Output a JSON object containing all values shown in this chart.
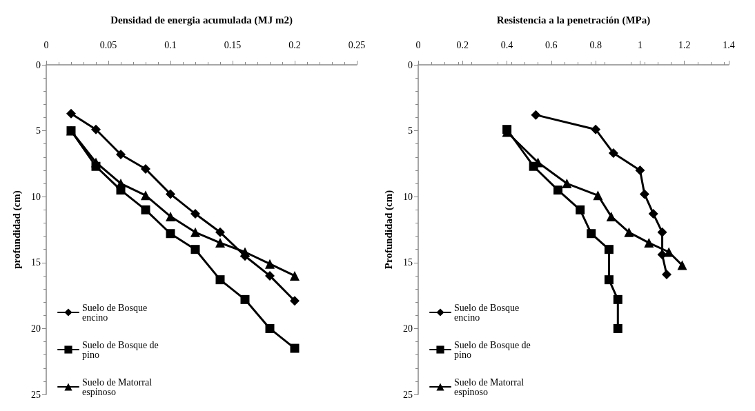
{
  "chart_data": [
    {
      "type": "line",
      "xlabel": "Densidad de energia acumulada (MJ m2)",
      "ylabel": "profundidad (cm)",
      "xlim": [
        0,
        0.25
      ],
      "xticks": [
        0,
        0.05,
        0.1,
        0.15,
        0.2,
        0.25
      ],
      "ylim": [
        25,
        0
      ],
      "yticks": [
        0,
        5,
        10,
        15,
        20,
        25
      ],
      "grid": false,
      "legend": "bottom left",
      "line_style": "solid",
      "series": [
        {
          "name": "Suelo de Bosque encino",
          "color": "#000000",
          "marker": "diamond",
          "x": [
            0.02,
            0.04,
            0.06,
            0.08,
            0.1,
            0.12,
            0.14,
            0.16,
            0.18,
            0.2
          ],
          "values": [
            3.7,
            4.9,
            6.8,
            7.9,
            9.8,
            11.3,
            12.7,
            14.5,
            16,
            17.9
          ]
        },
        {
          "name": "Suelo de Bosque de pino",
          "color": "#000000",
          "marker": "square",
          "x": [
            0.02,
            0.04,
            0.06,
            0.08,
            0.1,
            0.12,
            0.14,
            0.16,
            0.18,
            0.2
          ],
          "values": [
            5,
            7.7,
            9.5,
            11,
            12.8,
            14,
            16.3,
            17.8,
            20,
            21.5
          ]
        },
        {
          "name": "Suelo de Matorral espinoso",
          "color": "#000000",
          "marker": "triangle",
          "x": [
            0.02,
            0.04,
            0.06,
            0.08,
            0.1,
            0.12,
            0.14,
            0.16,
            0.18,
            0.2
          ],
          "values": [
            5,
            7.4,
            9,
            9.9,
            11.5,
            12.7,
            13.5,
            14.2,
            15.1,
            16
          ]
        }
      ]
    },
    {
      "type": "line",
      "xlabel": "Resistencia a la penetración (MPa)",
      "ylabel": "Profundidad (cm)",
      "xlim": [
        0,
        1.4
      ],
      "xticks": [
        0,
        0.2,
        0.4,
        0.6,
        0.8,
        1,
        1.2,
        1.4
      ],
      "ylim": [
        25,
        0
      ],
      "yticks": [
        0,
        5,
        10,
        15,
        20,
        25
      ],
      "grid": false,
      "legend": "bottom left",
      "line_style": "solid",
      "series": [
        {
          "name": "Suelo de Bosque encino",
          "color": "#000000",
          "marker": "diamond",
          "x": [
            0.53,
            0.8,
            0.88,
            1.0,
            1.02,
            1.06,
            1.1,
            1.1,
            1.12
          ],
          "values": [
            3.8,
            4.9,
            6.7,
            8,
            9.8,
            11.3,
            12.7,
            14.4,
            15.9
          ]
        },
        {
          "name": "Suelo de Bosque de pino",
          "color": "#000000",
          "marker": "square",
          "x": [
            0.4,
            0.52,
            0.63,
            0.73,
            0.78,
            0.86,
            0.86,
            0.9,
            0.9
          ],
          "values": [
            4.9,
            7.7,
            9.5,
            11,
            12.8,
            14,
            16.3,
            17.8,
            20
          ]
        },
        {
          "name": "Suelo de Matorral espinoso",
          "color": "#000000",
          "marker": "triangle",
          "x": [
            0.4,
            0.54,
            0.67,
            0.81,
            0.87,
            0.95,
            1.04,
            1.13,
            1.19
          ],
          "values": [
            5.1,
            7.4,
            9,
            9.9,
            11.5,
            12.7,
            13.5,
            14.2,
            15.2
          ]
        }
      ]
    }
  ]
}
